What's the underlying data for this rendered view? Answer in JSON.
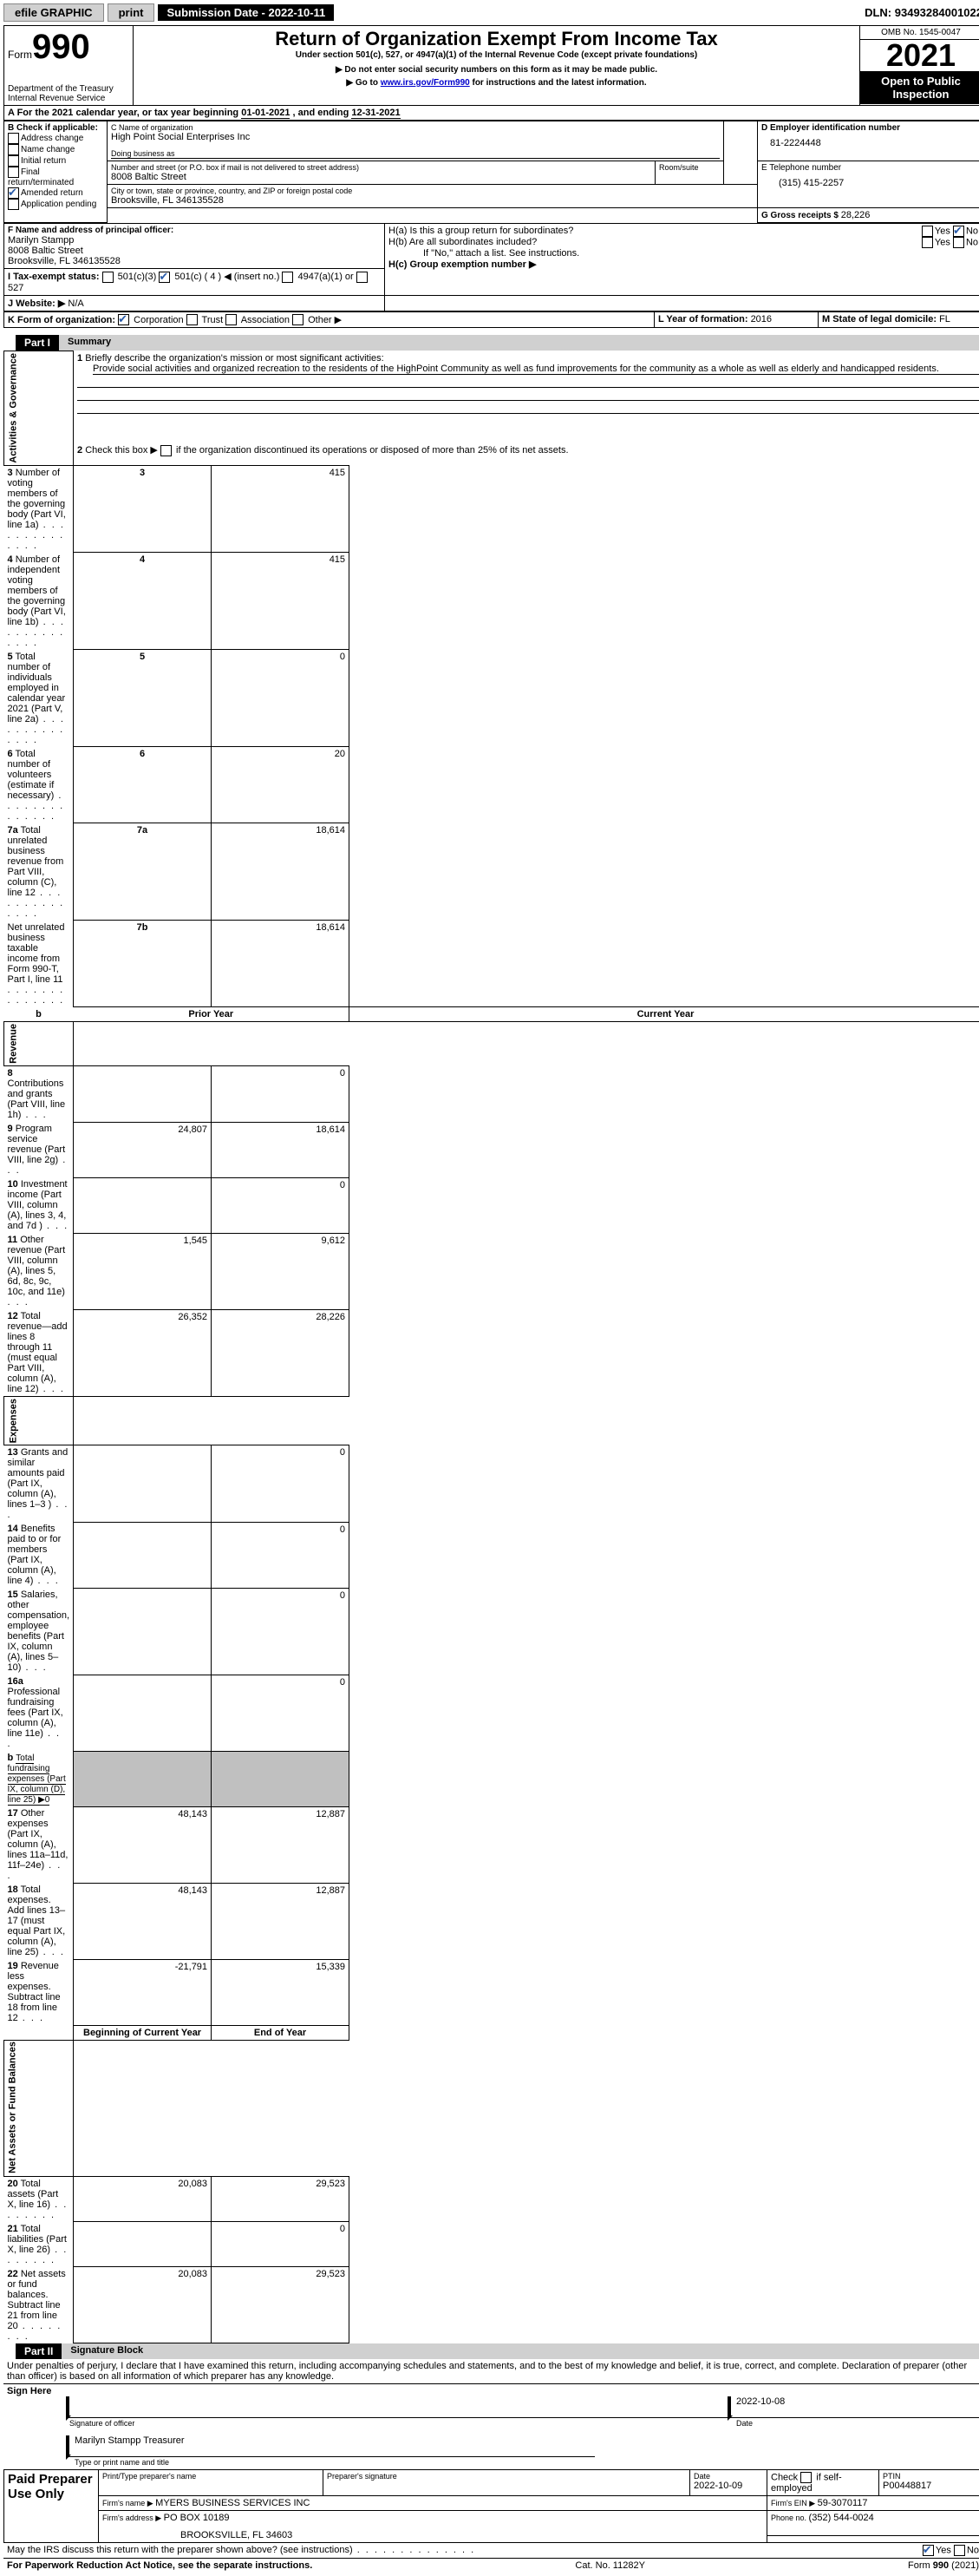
{
  "topbar": {
    "efile": "efile GRAPHIC",
    "print": "print",
    "subdate_label": "Submission Date - ",
    "subdate": "2022-10-11",
    "dln_label": "DLN: ",
    "dln": "93493284001022"
  },
  "header": {
    "form_label": "Form",
    "form_num": "990",
    "dept": "Department of the Treasury\nInternal Revenue Service",
    "title": "Return of Organization Exempt From Income Tax",
    "subtitle": "Under section 501(c), 527, or 4947(a)(1) of the Internal Revenue Code (except private foundations)",
    "warn1": "▶ Do not enter social security numbers on this form as it may be made public.",
    "warn2_pre": "▶ Go to ",
    "warn2_link": "www.irs.gov/Form990",
    "warn2_post": " for instructions and the latest information.",
    "omb": "OMB No. 1545-0047",
    "year": "2021",
    "open": "Open to Public Inspection"
  },
  "period": {
    "line": "A For the 2021 calendar year, or tax year beginning ",
    "begin": "01-01-2021",
    "mid": "   , and ending ",
    "end": "12-31-2021"
  },
  "boxB": {
    "label": "B Check if applicable:",
    "items": [
      "Address change",
      "Name change",
      "Initial return",
      "Final return/terminated",
      "Amended return",
      "Application pending"
    ],
    "checked_idx": 4
  },
  "boxC": {
    "name_label": "C Name of organization",
    "name": "High Point Social Enterprises Inc",
    "dba_label": "Doing business as",
    "addr_label": "Number and street (or P.O. box if mail is not delivered to street address)",
    "room_label": "Room/suite",
    "addr": "8008 Baltic Street",
    "city_label": "City or town, state or province, country, and ZIP or foreign postal code",
    "city": "Brooksville, FL  346135528"
  },
  "boxD": {
    "label": "D Employer identification number",
    "val": "81-2224448"
  },
  "boxE": {
    "label": "E Telephone number",
    "val": "(315) 415-2257"
  },
  "boxG": {
    "label": "G Gross receipts $ ",
    "val": "28,226"
  },
  "boxF": {
    "label": "F Name and address of principal officer:",
    "name": "Marilyn Stampp",
    "addr": "8008 Baltic Street",
    "city": "Brooksville, FL  346135528"
  },
  "boxH": {
    "ha": "H(a)  Is this a group return for subordinates?",
    "hb": "H(b)  Are all subordinates included?",
    "hb_note": "If \"No,\" attach a list. See instructions.",
    "hc": "H(c)  Group exemption number ▶",
    "yes": "Yes",
    "no": "No"
  },
  "boxI": {
    "label": "I  Tax-exempt status:",
    "opts": [
      "501(c)(3)",
      "501(c) ( 4 ) ◀ (insert no.)",
      "4947(a)(1) or",
      "527"
    ],
    "checked_idx": 1
  },
  "boxJ": {
    "label": "J  Website: ▶",
    "val": "  N/A"
  },
  "boxK": {
    "label": "K Form of organization:",
    "opts": [
      "Corporation",
      "Trust",
      "Association",
      "Other ▶"
    ],
    "checked_idx": 0
  },
  "boxL": {
    "label": "L Year of formation: ",
    "val": "2016"
  },
  "boxM": {
    "label": "M State of legal domicile: ",
    "val": "FL"
  },
  "part1": {
    "title": "Part I",
    "subtitle": "Summary",
    "sections": {
      "activities": "Activities & Governance",
      "revenue": "Revenue",
      "expenses": "Expenses",
      "netassets": "Net Assets or Fund Balances"
    },
    "l1": "Briefly describe the organization's mission or most significant activities:",
    "l1_text": "Provide social activities and organized recreation to the residents of the HighPoint Community as well as fund improvements for the community as a whole as well as elderly and handicapped residents.",
    "l2": "Check this box ▶        if the organization discontinued its operations or disposed of more than 25% of its net assets.",
    "rows": [
      {
        "n": "3",
        "t": "Number of voting members of the governing body (Part VI, line 1a)",
        "b": "3",
        "c": "415"
      },
      {
        "n": "4",
        "t": "Number of independent voting members of the governing body (Part VI, line 1b)",
        "b": "4",
        "c": "415"
      },
      {
        "n": "5",
        "t": "Total number of individuals employed in calendar year 2021 (Part V, line 2a)",
        "b": "5",
        "c": "0"
      },
      {
        "n": "6",
        "t": "Total number of volunteers (estimate if necessary)",
        "b": "6",
        "c": "20"
      },
      {
        "n": "7a",
        "t": "Total unrelated business revenue from Part VIII, column (C), line 12",
        "b": "7a",
        "c": "18,614"
      },
      {
        "n": "",
        "t": "Net unrelated business taxable income from Form 990-T, Part I, line 11",
        "b": "7b",
        "c": "18,614"
      }
    ],
    "pyr": "Prior Year",
    "cyr": "Current Year",
    "rev": [
      {
        "n": "8",
        "t": "Contributions and grants (Part VIII, line 1h)",
        "p": "",
        "c": "0"
      },
      {
        "n": "9",
        "t": "Program service revenue (Part VIII, line 2g)",
        "p": "24,807",
        "c": "18,614"
      },
      {
        "n": "10",
        "t": "Investment income (Part VIII, column (A), lines 3, 4, and 7d )",
        "p": "",
        "c": "0"
      },
      {
        "n": "11",
        "t": "Other revenue (Part VIII, column (A), lines 5, 6d, 8c, 9c, 10c, and 11e)",
        "p": "1,545",
        "c": "9,612"
      },
      {
        "n": "12",
        "t": "Total revenue—add lines 8 through 11 (must equal Part VIII, column (A), line 12)",
        "p": "26,352",
        "c": "28,226"
      }
    ],
    "exp": [
      {
        "n": "13",
        "t": "Grants and similar amounts paid (Part IX, column (A), lines 1–3 )",
        "p": "",
        "c": "0"
      },
      {
        "n": "14",
        "t": "Benefits paid to or for members (Part IX, column (A), line 4)",
        "p": "",
        "c": "0"
      },
      {
        "n": "15",
        "t": "Salaries, other compensation, employee benefits (Part IX, column (A), lines 5–10)",
        "p": "",
        "c": "0"
      },
      {
        "n": "16a",
        "t": "Professional fundraising fees (Part IX, column (A), line 11e)",
        "p": "",
        "c": "0"
      },
      {
        "n": "b",
        "t": "Total fundraising expenses (Part IX, column (D), line 25) ▶0",
        "grey": true
      },
      {
        "n": "17",
        "t": "Other expenses (Part IX, column (A), lines 11a–11d, 11f–24e)",
        "p": "48,143",
        "c": "12,887"
      },
      {
        "n": "18",
        "t": "Total expenses. Add lines 13–17 (must equal Part IX, column (A), line 25)",
        "p": "48,143",
        "c": "12,887"
      },
      {
        "n": "19",
        "t": "Revenue less expenses. Subtract line 18 from line 12",
        "p": "-21,791",
        "c": "15,339"
      }
    ],
    "boy": "Beginning of Current Year",
    "eoy": "End of Year",
    "net": [
      {
        "n": "20",
        "t": "Total assets (Part X, line 16)",
        "p": "20,083",
        "c": "29,523"
      },
      {
        "n": "21",
        "t": "Total liabilities (Part X, line 26)",
        "p": "",
        "c": "0"
      },
      {
        "n": "22",
        "t": "Net assets or fund balances. Subtract line 21 from line 20",
        "p": "20,083",
        "c": "29,523"
      }
    ]
  },
  "part2": {
    "title": "Part II",
    "subtitle": "Signature Block",
    "decl": "Under penalties of perjury, I declare that I have examined this return, including accompanying schedules and statements, and to the best of my knowledge and belief, it is true, correct, and complete. Declaration of preparer (other than officer) is based on all information of which preparer has any knowledge.",
    "sign_here": "Sign Here",
    "sig_officer": "Signature of officer",
    "sig_date": "2022-10-08",
    "date_label": "Date",
    "officer_name": "Marilyn Stampp  Treasurer",
    "type_label": "Type or print name and title",
    "paid": "Paid Preparer Use Only",
    "prep_name_label": "Print/Type preparer's name",
    "prep_sig_label": "Preparer's signature",
    "prep_date_label": "Date",
    "prep_date": "2022-10-09",
    "check_self": "Check         if self-employed",
    "ptin_label": "PTIN",
    "ptin": "P00448817",
    "firm_name_label": "Firm's name    ▶ ",
    "firm_name": "MYERS BUSINESS SERVICES INC",
    "firm_ein_label": "Firm's EIN ▶ ",
    "firm_ein": "59-3070117",
    "firm_addr_label": "Firm's address ▶ ",
    "firm_addr1": "PO BOX 10189",
    "firm_addr2": "BROOKSVILLE, FL  34603",
    "firm_phone_label": "Phone no. ",
    "firm_phone": "(352) 544-0024",
    "may_irs": "May the IRS discuss this return with the preparer shown above? (see instructions)",
    "yes": "Yes",
    "no": "No"
  },
  "footer": {
    "paperwork": "For Paperwork Reduction Act Notice, see the separate instructions.",
    "cat": "Cat. No. 11282Y",
    "form": "Form ",
    "form_num": "990",
    "form_yr": " (2021)"
  }
}
